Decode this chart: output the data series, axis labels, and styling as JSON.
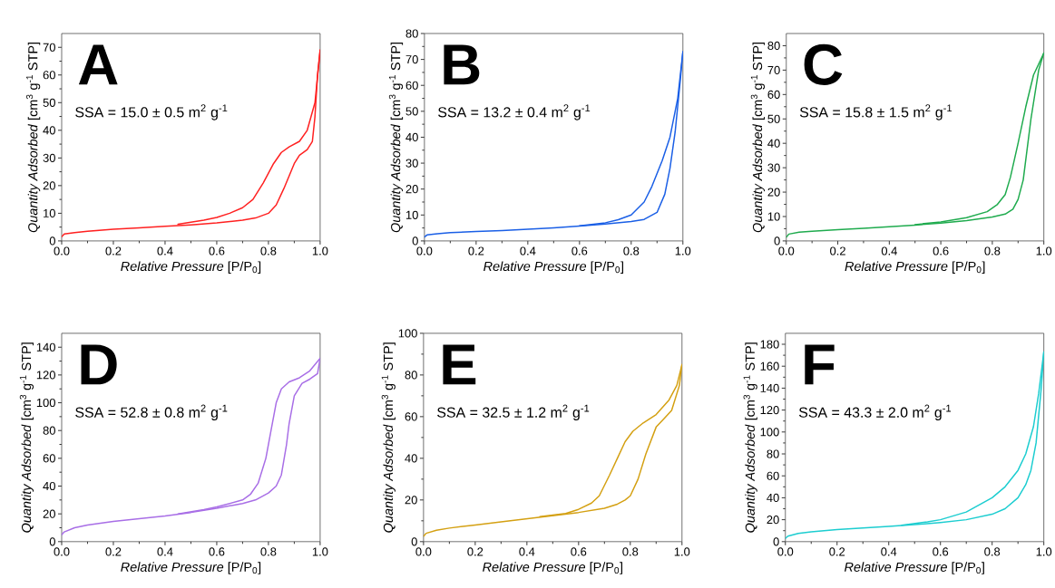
{
  "chart_data": [
    {
      "type": "line",
      "xlabel": "*Relative Pressure* [P/P$_{0}$]",
      "ylabel": "*Quantity Adsorbed* [cm$^{3}$ g$^{-1}$ STP]",
      "annotations": [
        "A",
        "SSA = 15.0 ± 0.5 m$^{2}$ g$^{-1}$"
      ],
      "marker": "none",
      "xlim": [
        0,
        1
      ],
      "ylim": [
        0,
        75
      ],
      "xticks": [
        {
          "value": 0,
          "label": "0.0"
        },
        {
          "value": 0.2,
          "label": "0.2"
        },
        {
          "value": 0.4,
          "label": "0.4"
        },
        {
          "value": 0.6,
          "label": "0.6"
        },
        {
          "value": 0.8,
          "label": "0.8"
        },
        {
          "value": 1,
          "label": "1.0"
        }
      ],
      "yticks": [
        0,
        10,
        20,
        30,
        40,
        50,
        60,
        70
      ],
      "series": [
        {
          "color": "#ff2020",
          "x": [
            0,
            0.01,
            0.05,
            0.1,
            0.2,
            0.3,
            0.4,
            0.5,
            0.6,
            0.7,
            0.75,
            0.8,
            0.83,
            0.86,
            0.9,
            0.92,
            0.95,
            0.97,
            0.98,
            0.99,
            1.0
          ],
          "values": [
            1.5,
            2.5,
            3,
            3.5,
            4.2,
            4.7,
            5.3,
            5.8,
            6.5,
            7.5,
            8.3,
            10,
            13,
            19,
            28,
            31,
            33,
            36,
            45,
            60,
            69
          ]
        },
        {
          "color": "#ff2020",
          "x": [
            0.45,
            0.5,
            0.55,
            0.6,
            0.65,
            0.7,
            0.74,
            0.78,
            0.82,
            0.85,
            0.88,
            0.92,
            0.95,
            0.98,
            1.0
          ],
          "values": [
            6,
            6.8,
            7.5,
            8.5,
            10,
            12,
            15,
            21,
            28,
            32,
            34,
            36,
            40,
            50,
            69
          ]
        }
      ]
    },
    {
      "type": "line",
      "xlabel": "*Relative Pressure* [P/P$_{0}$]",
      "ylabel": "*Quantity Adsorbed* [cm$^{3}$ g$^{-1}$ STP]",
      "annotations": [
        "B",
        "SSA = 13.2 ± 0.4 m$^{2}$ g$^{-1}$"
      ],
      "marker": "none",
      "xlim": [
        0,
        1
      ],
      "ylim": [
        0,
        80
      ],
      "xticks": [
        {
          "value": 0,
          "label": "0.0"
        },
        {
          "value": 0.2,
          "label": "0.2"
        },
        {
          "value": 0.4,
          "label": "0.4"
        },
        {
          "value": 0.6,
          "label": "0.6"
        },
        {
          "value": 0.8,
          "label": "0.8"
        },
        {
          "value": 1,
          "label": "1.0"
        }
      ],
      "yticks": [
        0,
        10,
        20,
        30,
        40,
        50,
        60,
        70,
        80
      ],
      "series": [
        {
          "color": "#1a5fe6",
          "x": [
            0,
            0.01,
            0.05,
            0.1,
            0.2,
            0.3,
            0.4,
            0.5,
            0.6,
            0.7,
            0.8,
            0.85,
            0.9,
            0.93,
            0.95,
            0.97,
            0.99,
            1.0
          ],
          "values": [
            1.5,
            2.3,
            2.8,
            3.2,
            3.6,
            4,
            4.5,
            5,
            5.7,
            6.5,
            7.5,
            8.3,
            11,
            18,
            28,
            42,
            62,
            73
          ]
        },
        {
          "color": "#1a5fe6",
          "x": [
            0.6,
            0.7,
            0.75,
            0.8,
            0.85,
            0.88,
            0.92,
            0.95,
            0.98,
            1.0
          ],
          "values": [
            5.8,
            7,
            8.2,
            10,
            15,
            21,
            31,
            40,
            55,
            73
          ]
        }
      ]
    },
    {
      "type": "line",
      "xlabel": "*Relative Pressure* [P/P$_{0}$]",
      "ylabel": "*Quantity Adsorbed* [cm$^{3}$ g$^{-1}$ STP]",
      "annotations": [
        "C",
        "SSA = 15.8 ± 1.5 m$^{2}$ g$^{-1}$"
      ],
      "marker": "none",
      "xlim": [
        0,
        1
      ],
      "ylim": [
        0,
        85
      ],
      "xticks": [
        {
          "value": 0,
          "label": "0.0"
        },
        {
          "value": 0.2,
          "label": "0.2"
        },
        {
          "value": 0.4,
          "label": "0.4"
        },
        {
          "value": 0.6,
          "label": "0.6"
        },
        {
          "value": 0.8,
          "label": "0.8"
        },
        {
          "value": 1,
          "label": "1.0"
        }
      ],
      "yticks": [
        0,
        10,
        20,
        30,
        40,
        50,
        60,
        70,
        80
      ],
      "series": [
        {
          "color": "#1fab4e",
          "x": [
            0,
            0.01,
            0.05,
            0.1,
            0.2,
            0.3,
            0.4,
            0.5,
            0.6,
            0.7,
            0.8,
            0.85,
            0.88,
            0.9,
            0.92,
            0.95,
            0.98,
            1.0
          ],
          "values": [
            1.5,
            2.8,
            3.6,
            4,
            4.6,
            5.2,
            5.8,
            6.5,
            7.3,
            8.3,
            9.8,
            11,
            13,
            17,
            25,
            50,
            70,
            77
          ]
        },
        {
          "color": "#1fab4e",
          "x": [
            0.5,
            0.6,
            0.7,
            0.78,
            0.82,
            0.85,
            0.87,
            0.9,
            0.93,
            0.96,
            1.0
          ],
          "values": [
            6.7,
            7.8,
            9.5,
            12,
            15,
            19,
            26,
            40,
            55,
            68,
            77
          ]
        }
      ]
    },
    {
      "type": "line",
      "xlabel": "*Relative Pressure* [P/P$_{0}$]",
      "ylabel": "*Quantity Adsorbed* [cm$^{3}$ g$^{-1}$ STP]",
      "annotations": [
        "D",
        "SSA = 52.8 ± 0.8 m$^{2}$ g$^{-1}$"
      ],
      "marker": "none",
      "xlim": [
        0,
        1
      ],
      "ylim": [
        0,
        150
      ],
      "xticks": [
        {
          "value": 0,
          "label": "0.0"
        },
        {
          "value": 0.2,
          "label": "0.2"
        },
        {
          "value": 0.4,
          "label": "0.4"
        },
        {
          "value": 0.6,
          "label": "0.6"
        },
        {
          "value": 0.8,
          "label": "0.8"
        },
        {
          "value": 1,
          "label": "1.0"
        }
      ],
      "yticks": [
        0,
        20,
        40,
        60,
        80,
        100,
        120,
        140
      ],
      "series": [
        {
          "color": "#a86ee6",
          "x": [
            0,
            0.01,
            0.05,
            0.1,
            0.2,
            0.3,
            0.4,
            0.5,
            0.6,
            0.7,
            0.75,
            0.8,
            0.83,
            0.85,
            0.87,
            0.88,
            0.9,
            0.93,
            0.96,
            0.99,
            1.0
          ],
          "values": [
            5,
            7,
            10,
            12,
            14.5,
            16.5,
            18.5,
            21,
            24,
            27.5,
            30,
            35,
            40,
            48,
            70,
            85,
            105,
            114,
            117,
            121,
            132
          ]
        },
        {
          "color": "#a86ee6",
          "x": [
            0.45,
            0.55,
            0.6,
            0.7,
            0.73,
            0.76,
            0.79,
            0.81,
            0.83,
            0.85,
            0.88,
            0.92,
            0.96,
            1.0
          ],
          "values": [
            20,
            23,
            25,
            30,
            34,
            42,
            60,
            80,
            100,
            110,
            115,
            118,
            123,
            132
          ]
        }
      ]
    },
    {
      "type": "line",
      "xlabel": "*Relative Pressure* [P/P$_{0}$]",
      "ylabel": "*Quantity Adsorbed* [cm$^{3}$ g$^{-1}$ STP]",
      "annotations": [
        "E",
        "SSA = 32.5 ± 1.2 m$^{2}$ g$^{-1}$"
      ],
      "marker": "none",
      "xlim": [
        0,
        1
      ],
      "ylim": [
        0,
        100
      ],
      "xticks": [
        {
          "value": 0,
          "label": "0.0"
        },
        {
          "value": 0.2,
          "label": "0.2"
        },
        {
          "value": 0.4,
          "label": "0.4"
        },
        {
          "value": 0.6,
          "label": "0.6"
        },
        {
          "value": 0.8,
          "label": "0.8"
        },
        {
          "value": 1,
          "label": "1.0"
        }
      ],
      "yticks": [
        0,
        20,
        40,
        60,
        80,
        100
      ],
      "series": [
        {
          "color": "#d4a012",
          "x": [
            0,
            0.01,
            0.05,
            0.1,
            0.2,
            0.3,
            0.4,
            0.5,
            0.6,
            0.7,
            0.75,
            0.78,
            0.8,
            0.83,
            0.86,
            0.9,
            0.93,
            0.96,
            0.99,
            1.0
          ],
          "values": [
            2.5,
            4,
            5.5,
            6.5,
            8,
            9.5,
            11,
            12.5,
            14,
            16,
            18,
            20,
            22,
            30,
            42,
            55,
            59,
            63,
            75,
            85
          ]
        },
        {
          "color": "#d4a012",
          "x": [
            0.45,
            0.55,
            0.6,
            0.65,
            0.68,
            0.72,
            0.75,
            0.78,
            0.81,
            0.85,
            0.9,
            0.95,
            0.98,
            1.0
          ],
          "values": [
            12,
            13.5,
            15.5,
            18.5,
            22,
            32,
            40,
            48,
            53,
            57,
            61,
            68,
            75,
            85
          ]
        }
      ]
    },
    {
      "type": "line",
      "xlabel": "*Relative Pressure* [P/P$_{0}$]",
      "ylabel": "*Quantity Adsorbed* [cm$^{3}$ g$^{-1}$ STP]",
      "annotations": [
        "F",
        "SSA = 43.3 ± 2.0 m$^{2}$ g$^{-1}$"
      ],
      "marker": "none",
      "xlim": [
        0,
        1
      ],
      "ylim": [
        0,
        190
      ],
      "xticks": [
        {
          "value": 0,
          "label": "0.0"
        },
        {
          "value": 0.2,
          "label": "0.2"
        },
        {
          "value": 0.4,
          "label": "0.4"
        },
        {
          "value": 0.6,
          "label": "0.6"
        },
        {
          "value": 0.8,
          "label": "0.8"
        },
        {
          "value": 1,
          "label": "1.0"
        }
      ],
      "yticks": [
        0,
        20,
        40,
        60,
        80,
        100,
        120,
        140,
        160,
        180
      ],
      "series": [
        {
          "color": "#1ccdd0",
          "x": [
            0,
            0.01,
            0.05,
            0.1,
            0.2,
            0.3,
            0.4,
            0.5,
            0.6,
            0.7,
            0.8,
            0.85,
            0.9,
            0.93,
            0.95,
            0.97,
            0.99,
            1.0
          ],
          "values": [
            3,
            5,
            7.5,
            9,
            11,
            12.5,
            14,
            15.5,
            17.5,
            20,
            25,
            30,
            40,
            52,
            65,
            90,
            140,
            173
          ]
        },
        {
          "color": "#1ccdd0",
          "x": [
            0.45,
            0.55,
            0.6,
            0.7,
            0.8,
            0.85,
            0.9,
            0.93,
            0.96,
            0.98,
            1.0
          ],
          "values": [
            15,
            18,
            20,
            27,
            40,
            50,
            65,
            80,
            105,
            135,
            173
          ]
        }
      ]
    }
  ]
}
